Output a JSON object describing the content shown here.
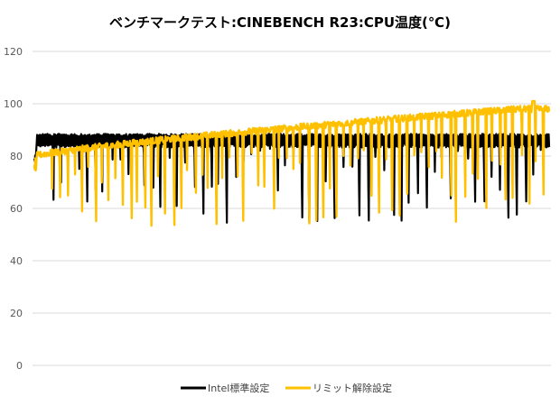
{
  "chart_data": {
    "type": "line",
    "title": "ベンチマークテスト:CINEBENCH R23:CPU温度(℃)",
    "xlabel": "",
    "ylabel": "",
    "ylim": [
      0,
      120
    ],
    "yticks": [
      0,
      20,
      40,
      60,
      80,
      100,
      120
    ],
    "grid": "horizontal",
    "legend_position": "bottom",
    "series": [
      {
        "name": "Intel標準設定",
        "color": "#000000",
        "plateau": [
          84,
          88
        ],
        "dip_count": 60,
        "dip_min": 54
      },
      {
        "name": "リミット解除設定",
        "color": "#FFC000",
        "plateau_start": 80,
        "plateau_end": 98,
        "peak": 101,
        "dip_count": 70,
        "dip_min": 53
      }
    ]
  }
}
